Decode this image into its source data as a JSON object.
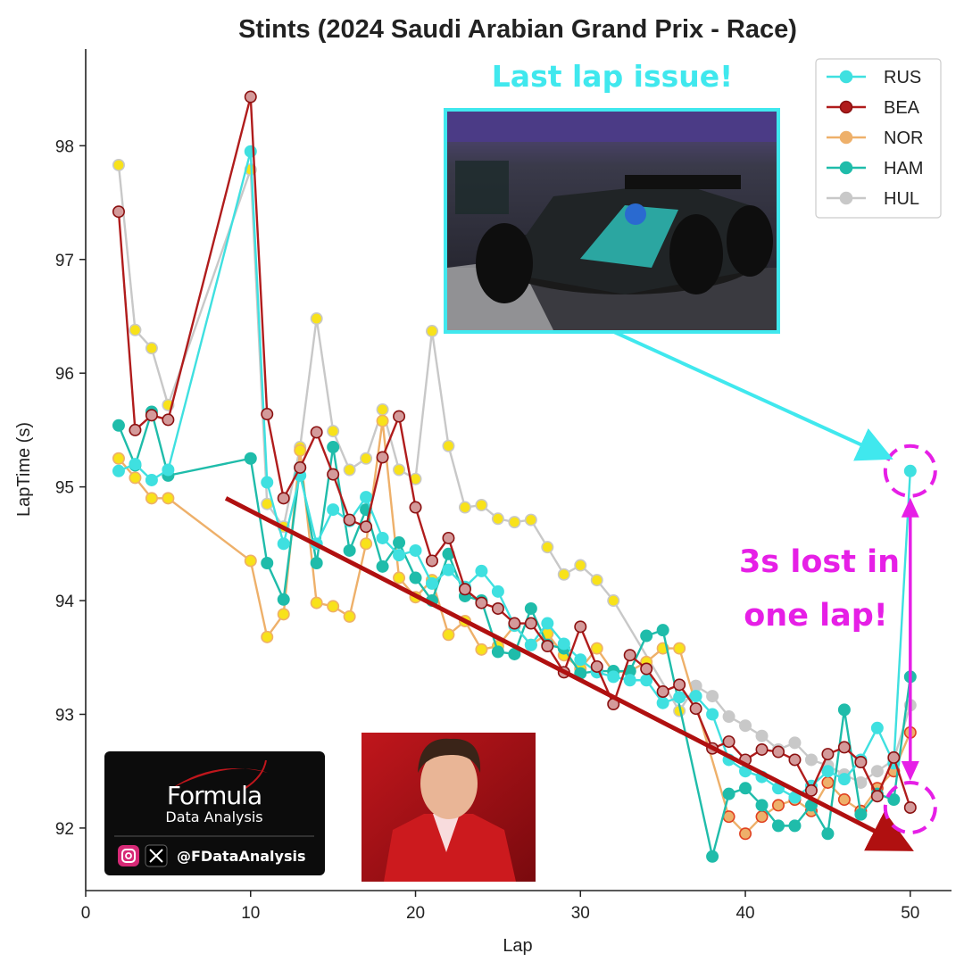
{
  "chart_data": {
    "type": "line",
    "title": "Stints (2024 Saudi Arabian Grand Prix - Race)",
    "xlabel": "Lap",
    "ylabel": "LapTime (s)",
    "xlim": [
      0,
      52.5
    ],
    "ylim": [
      91.45,
      98.85
    ],
    "xticks": [
      0,
      10,
      20,
      30,
      40,
      50
    ],
    "yticks": [
      92,
      93,
      94,
      95,
      96,
      97,
      98
    ],
    "legend_position": "top-right",
    "colors": {
      "RUS": "#3fe0e0",
      "BEA": "#b01c1c",
      "NOR": "#eeb06a",
      "HAM": "#1fbcaa",
      "HUL": "#c8c8c8"
    },
    "series": [
      {
        "name": "HUL",
        "points": [
          [
            2,
            97.83
          ],
          [
            3,
            96.38
          ],
          [
            4,
            96.22
          ],
          [
            5,
            95.72
          ],
          [
            10,
            97.79
          ],
          [
            11,
            94.85
          ],
          [
            12,
            94.65
          ],
          [
            13,
            95.35
          ],
          [
            14,
            96.48
          ],
          [
            15,
            95.49
          ],
          [
            16,
            95.15
          ],
          [
            17,
            95.25
          ],
          [
            18,
            95.68
          ],
          [
            19,
            95.15
          ],
          [
            20,
            95.07
          ],
          [
            21,
            96.37
          ],
          [
            22,
            95.36
          ],
          [
            23,
            94.82
          ],
          [
            24,
            94.84
          ],
          [
            25,
            94.72
          ],
          [
            26,
            94.69
          ],
          [
            27,
            94.71
          ],
          [
            28,
            94.47
          ],
          [
            29,
            94.23
          ],
          [
            30,
            94.31
          ],
          [
            31,
            94.18
          ],
          [
            32,
            94.0
          ],
          [
            36,
            93.03
          ],
          [
            37,
            93.25
          ],
          [
            38,
            93.16
          ],
          [
            39,
            92.98
          ],
          [
            40,
            92.9
          ],
          [
            41,
            92.81
          ],
          [
            42,
            92.69
          ],
          [
            43,
            92.75
          ],
          [
            44,
            92.6
          ],
          [
            45,
            92.55
          ],
          [
            46,
            92.47
          ],
          [
            47,
            92.4
          ],
          [
            48,
            92.5
          ],
          [
            49,
            92.6
          ],
          [
            50,
            93.08
          ]
        ]
      },
      {
        "name": "NOR",
        "points": [
          [
            2,
            95.25
          ],
          [
            3,
            95.08
          ],
          [
            4,
            94.9
          ],
          [
            5,
            94.9
          ],
          [
            10,
            94.35
          ],
          [
            11,
            93.68
          ],
          [
            12,
            93.88
          ],
          [
            13,
            95.32
          ],
          [
            14,
            93.98
          ],
          [
            15,
            93.95
          ],
          [
            16,
            93.86
          ],
          [
            17,
            94.5
          ],
          [
            18,
            95.58
          ],
          [
            19,
            94.2
          ],
          [
            20,
            94.03
          ],
          [
            21,
            94.18
          ],
          [
            22,
            93.7
          ],
          [
            23,
            93.82
          ],
          [
            24,
            93.57
          ],
          [
            25,
            93.6
          ],
          [
            26,
            93.78
          ],
          [
            27,
            93.61
          ],
          [
            28,
            93.71
          ],
          [
            29,
            93.52
          ],
          [
            30,
            93.4
          ],
          [
            31,
            93.58
          ],
          [
            32,
            93.37
          ],
          [
            33,
            93.38
          ],
          [
            34,
            93.46
          ],
          [
            35,
            93.58
          ],
          [
            36,
            93.58
          ],
          [
            39,
            92.1
          ],
          [
            40,
            91.95
          ],
          [
            41,
            92.1
          ],
          [
            42,
            92.2
          ],
          [
            43,
            92.25
          ],
          [
            44,
            92.15
          ],
          [
            45,
            92.4
          ],
          [
            46,
            92.25
          ],
          [
            47,
            92.15
          ],
          [
            48,
            92.35
          ],
          [
            49,
            92.5
          ],
          [
            50,
            92.84
          ]
        ]
      },
      {
        "name": "HAM",
        "points": [
          [
            2,
            95.54
          ],
          [
            3,
            95.19
          ],
          [
            4,
            95.66
          ],
          [
            5,
            95.1
          ],
          [
            10,
            95.25
          ],
          [
            11,
            94.33
          ],
          [
            12,
            94.01
          ],
          [
            13,
            95.17
          ],
          [
            14,
            94.33
          ],
          [
            15,
            95.35
          ],
          [
            16,
            94.44
          ],
          [
            17,
            94.8
          ],
          [
            18,
            94.3
          ],
          [
            19,
            94.51
          ],
          [
            20,
            94.2
          ],
          [
            21,
            94.0
          ],
          [
            22,
            94.41
          ],
          [
            23,
            94.04
          ],
          [
            24,
            94.0
          ],
          [
            25,
            93.55
          ],
          [
            26,
            93.53
          ],
          [
            27,
            93.93
          ],
          [
            28,
            93.61
          ],
          [
            29,
            93.58
          ],
          [
            30,
            93.36
          ],
          [
            31,
            93.38
          ],
          [
            32,
            93.38
          ],
          [
            33,
            93.38
          ],
          [
            34,
            93.69
          ],
          [
            35,
            93.74
          ],
          [
            38,
            91.75
          ],
          [
            39,
            92.3
          ],
          [
            40,
            92.35
          ],
          [
            41,
            92.2
          ],
          [
            42,
            92.02
          ],
          [
            43,
            92.02
          ],
          [
            44,
            92.2
          ],
          [
            45,
            91.95
          ],
          [
            46,
            93.04
          ],
          [
            47,
            92.12
          ],
          [
            48,
            92.3
          ],
          [
            49,
            92.25
          ],
          [
            50,
            93.33
          ]
        ]
      },
      {
        "name": "RUS",
        "points": [
          [
            2,
            95.14
          ],
          [
            3,
            95.2
          ],
          [
            4,
            95.06
          ],
          [
            5,
            95.15
          ],
          [
            10,
            97.95
          ],
          [
            11,
            95.04
          ],
          [
            12,
            94.5
          ],
          [
            13,
            95.1
          ],
          [
            14,
            94.5
          ],
          [
            15,
            94.8
          ],
          [
            16,
            94.7
          ],
          [
            17,
            94.91
          ],
          [
            18,
            94.55
          ],
          [
            19,
            94.4
          ],
          [
            20,
            94.44
          ],
          [
            21,
            94.15
          ],
          [
            22,
            94.27
          ],
          [
            23,
            94.12
          ],
          [
            24,
            94.26
          ],
          [
            25,
            94.08
          ],
          [
            26,
            93.78
          ],
          [
            27,
            93.61
          ],
          [
            28,
            93.8
          ],
          [
            29,
            93.62
          ],
          [
            30,
            93.48
          ],
          [
            31,
            93.37
          ],
          [
            32,
            93.33
          ],
          [
            33,
            93.3
          ],
          [
            34,
            93.3
          ],
          [
            35,
            93.1
          ],
          [
            36,
            93.15
          ],
          [
            37,
            93.16
          ],
          [
            38,
            93.0
          ],
          [
            39,
            92.6
          ],
          [
            40,
            92.5
          ],
          [
            41,
            92.45
          ],
          [
            42,
            92.35
          ],
          [
            43,
            92.27
          ],
          [
            44,
            92.37
          ],
          [
            45,
            92.5
          ],
          [
            46,
            92.43
          ],
          [
            47,
            92.6
          ],
          [
            48,
            92.88
          ],
          [
            49,
            92.57
          ],
          [
            50,
            95.14
          ]
        ]
      },
      {
        "name": "BEA",
        "points": [
          [
            2,
            97.42
          ],
          [
            3,
            95.5
          ],
          [
            4,
            95.63
          ],
          [
            5,
            95.59
          ],
          [
            10,
            98.43
          ],
          [
            11,
            95.64
          ],
          [
            12,
            94.9
          ],
          [
            13,
            95.17
          ],
          [
            14,
            95.48
          ],
          [
            15,
            95.11
          ],
          [
            16,
            94.71
          ],
          [
            17,
            94.65
          ],
          [
            18,
            95.26
          ],
          [
            19,
            95.62
          ],
          [
            20,
            94.82
          ],
          [
            21,
            94.35
          ],
          [
            22,
            94.55
          ],
          [
            23,
            94.1
          ],
          [
            24,
            93.98
          ],
          [
            25,
            93.93
          ],
          [
            26,
            93.8
          ],
          [
            27,
            93.8
          ],
          [
            28,
            93.6
          ],
          [
            29,
            93.37
          ],
          [
            30,
            93.77
          ],
          [
            31,
            93.42
          ],
          [
            32,
            93.09
          ],
          [
            33,
            93.52
          ],
          [
            34,
            93.4
          ],
          [
            35,
            93.2
          ],
          [
            36,
            93.26
          ],
          [
            37,
            93.05
          ],
          [
            38,
            92.7
          ],
          [
            39,
            92.76
          ],
          [
            40,
            92.6
          ],
          [
            41,
            92.69
          ],
          [
            42,
            92.67
          ],
          [
            43,
            92.6
          ],
          [
            44,
            92.33
          ],
          [
            45,
            92.65
          ],
          [
            46,
            92.71
          ],
          [
            47,
            92.58
          ],
          [
            48,
            92.28
          ],
          [
            49,
            92.62
          ],
          [
            50,
            92.18
          ]
        ]
      }
    ],
    "legend": [
      "RUS",
      "BEA",
      "NOR",
      "HAM",
      "HUL"
    ],
    "annotations": {
      "last_lap_text": "Last lap issue!",
      "lost_text_line1": "3s lost in",
      "lost_text_line2": "one lap!",
      "trend_arrow_from": [
        8.5,
        94.9
      ],
      "trend_arrow_to": [
        49.5,
        91.85
      ],
      "circle_top": [
        50,
        95.14
      ],
      "circle_bottom": [
        50,
        92.18
      ]
    }
  },
  "logo": {
    "title": "Formula",
    "subtitle": "Data Analysis",
    "handle": "@FDataAnalysis"
  }
}
